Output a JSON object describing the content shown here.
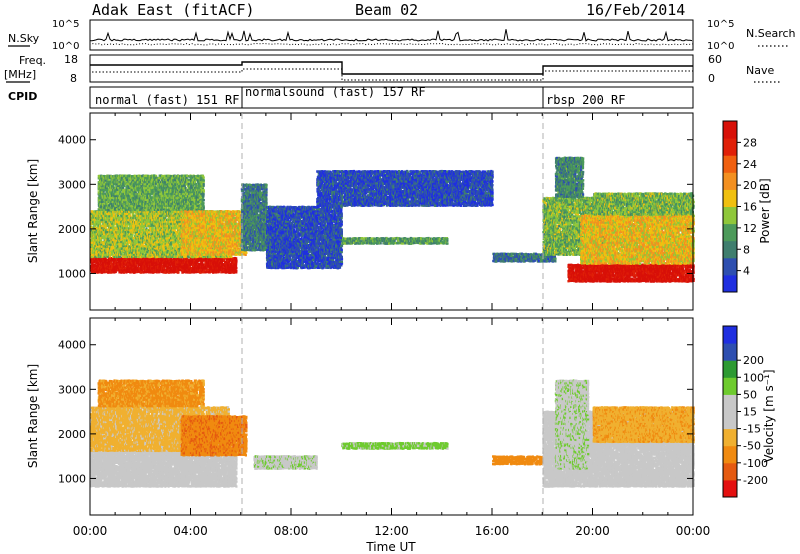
{
  "header": {
    "title": "Adak East (fitACF)",
    "beam": "Beam 02",
    "date": "16/Feb/2014"
  },
  "noise_panel": {
    "left_label": "N.Sky",
    "right_label": "N.Search",
    "left_ticks": [
      "10^5",
      "10^0"
    ],
    "right_ticks": [
      "10^5",
      "10^0"
    ]
  },
  "freq_panel": {
    "left_label_1": "Freq.",
    "left_label_2": "[MHz]",
    "right_label": "Nave",
    "left_ticks": [
      "18",
      "8"
    ],
    "right_ticks": [
      "60",
      "0"
    ]
  },
  "cpid_panel": {
    "label": "CPID",
    "segments": [
      {
        "name": "normal (fast) 151 RF",
        "start_hour": 0,
        "end_hour": 6
      },
      {
        "name": "normalsound (fast) 157 RF",
        "start_hour": 6,
        "end_hour": 18
      },
      {
        "name": "rbsp 200 RF",
        "start_hour": 18,
        "end_hour": 24
      }
    ]
  },
  "colors": {
    "power_scale": [
      "#1f2fe0",
      "#2e4fb0",
      "#3f7e6e",
      "#4c9a5a",
      "#8fc73a",
      "#f0c010",
      "#f39020",
      "#f06010",
      "#e02008",
      "#d81008"
    ],
    "velocity_scale": [
      "#e41010",
      "#e55a10",
      "#f08a10",
      "#f0b030",
      "#c8c8c8",
      "#c8c8c8",
      "#6ecb2e",
      "#2d9a32",
      "#2e4fb0",
      "#1f2fe0"
    ],
    "ground_scatter": "#c8c8c8"
  },
  "chart_data": [
    {
      "type": "heatmap",
      "name": "power",
      "xlabel": "Time UT",
      "ylabel": "Slant Range [km]",
      "xlim_hours": [
        0,
        24
      ],
      "ylim_km": [
        180,
        4600
      ],
      "x_tick_labels": [
        "00:00",
        "04:00",
        "08:00",
        "12:00",
        "16:00",
        "20:00",
        "00:00"
      ],
      "y_ticks": [
        1000,
        2000,
        3000,
        4000
      ],
      "colorbar": {
        "label": "Power [dB]",
        "ticks": [
          4,
          8,
          12,
          16,
          20,
          24,
          28
        ],
        "range": [
          0,
          32
        ]
      },
      "regions": [
        {
          "t0": 0,
          "t1": 5.8,
          "r0": 1000,
          "r1": 1350,
          "val": 31
        },
        {
          "t0": 0,
          "t1": 5.6,
          "r0": 1350,
          "r1": 2400,
          "val": 15
        },
        {
          "t0": 0.3,
          "t1": 4.5,
          "r0": 2400,
          "r1": 3200,
          "val": 12
        },
        {
          "t0": 3.6,
          "t1": 6.2,
          "r0": 1400,
          "r1": 2400,
          "val": 18
        },
        {
          "t0": 6.0,
          "t1": 7.0,
          "r0": 1500,
          "r1": 3000,
          "val": 8
        },
        {
          "t0": 7.0,
          "t1": 10.0,
          "r0": 1100,
          "r1": 2500,
          "val": 4
        },
        {
          "t0": 10.0,
          "t1": 14.2,
          "r0": 1650,
          "r1": 1800,
          "val": 11
        },
        {
          "t0": 9.0,
          "t1": 16.0,
          "r0": 2500,
          "r1": 3300,
          "val": 4
        },
        {
          "t0": 16.0,
          "t1": 18.5,
          "r0": 1250,
          "r1": 1450,
          "val": 7
        },
        {
          "t0": 18.0,
          "t1": 20.5,
          "r0": 1400,
          "r1": 2700,
          "val": 13
        },
        {
          "t0": 18.5,
          "t1": 19.6,
          "r0": 2700,
          "r1": 3600,
          "val": 9
        },
        {
          "t0": 19.0,
          "t1": 24.0,
          "r0": 800,
          "r1": 1200,
          "val": 31
        },
        {
          "t0": 19.5,
          "t1": 24.0,
          "r0": 1200,
          "r1": 2300,
          "val": 18
        },
        {
          "t0": 20.0,
          "t1": 24.0,
          "r0": 2300,
          "r1": 2800,
          "val": 13
        }
      ]
    },
    {
      "type": "heatmap",
      "name": "velocity",
      "xlabel": "Time UT",
      "ylabel": "Slant Range [km]",
      "xlim_hours": [
        0,
        24
      ],
      "ylim_km": [
        180,
        4600
      ],
      "x_tick_labels": [
        "00:00",
        "04:00",
        "08:00",
        "12:00",
        "16:00",
        "20:00",
        "00:00"
      ],
      "y_ticks": [
        1000,
        2000,
        3000,
        4000
      ],
      "colorbar": {
        "label": "Velocity [m s⁻¹]",
        "ticks": [
          -200,
          -100,
          -50,
          -15,
          15,
          50,
          100,
          200
        ],
        "tick_labels": [
          "-200",
          "-100",
          "-50",
          "-15",
          "15",
          "50",
          "100",
          "200"
        ]
      },
      "regions": [
        {
          "t0": 0,
          "t1": 5.8,
          "r0": 800,
          "r1": 1600,
          "val": "ground"
        },
        {
          "t0": 0,
          "t1": 5.5,
          "r0": 1600,
          "r1": 2600,
          "val": -30
        },
        {
          "t0": 0.3,
          "t1": 4.5,
          "r0": 2600,
          "r1": 3200,
          "val": -60
        },
        {
          "t0": 3.6,
          "t1": 6.2,
          "r0": 1500,
          "r1": 2400,
          "val": -90
        },
        {
          "t0": 10.0,
          "t1": 14.2,
          "r0": 1650,
          "r1": 1800,
          "val": 60
        },
        {
          "t0": 6.5,
          "t1": 9.0,
          "r0": 1200,
          "r1": 1500,
          "val": 40
        },
        {
          "t0": 16.0,
          "t1": 18.2,
          "r0": 1300,
          "r1": 1500,
          "val": -80
        },
        {
          "t0": 18.0,
          "t1": 24.0,
          "r0": 800,
          "r1": 2500,
          "val": "ground"
        },
        {
          "t0": 18.5,
          "t1": 19.8,
          "r0": 1200,
          "r1": 3200,
          "val": 40
        },
        {
          "t0": 20.0,
          "t1": 24.0,
          "r0": 1800,
          "r1": 2600,
          "val": -40
        }
      ]
    }
  ]
}
